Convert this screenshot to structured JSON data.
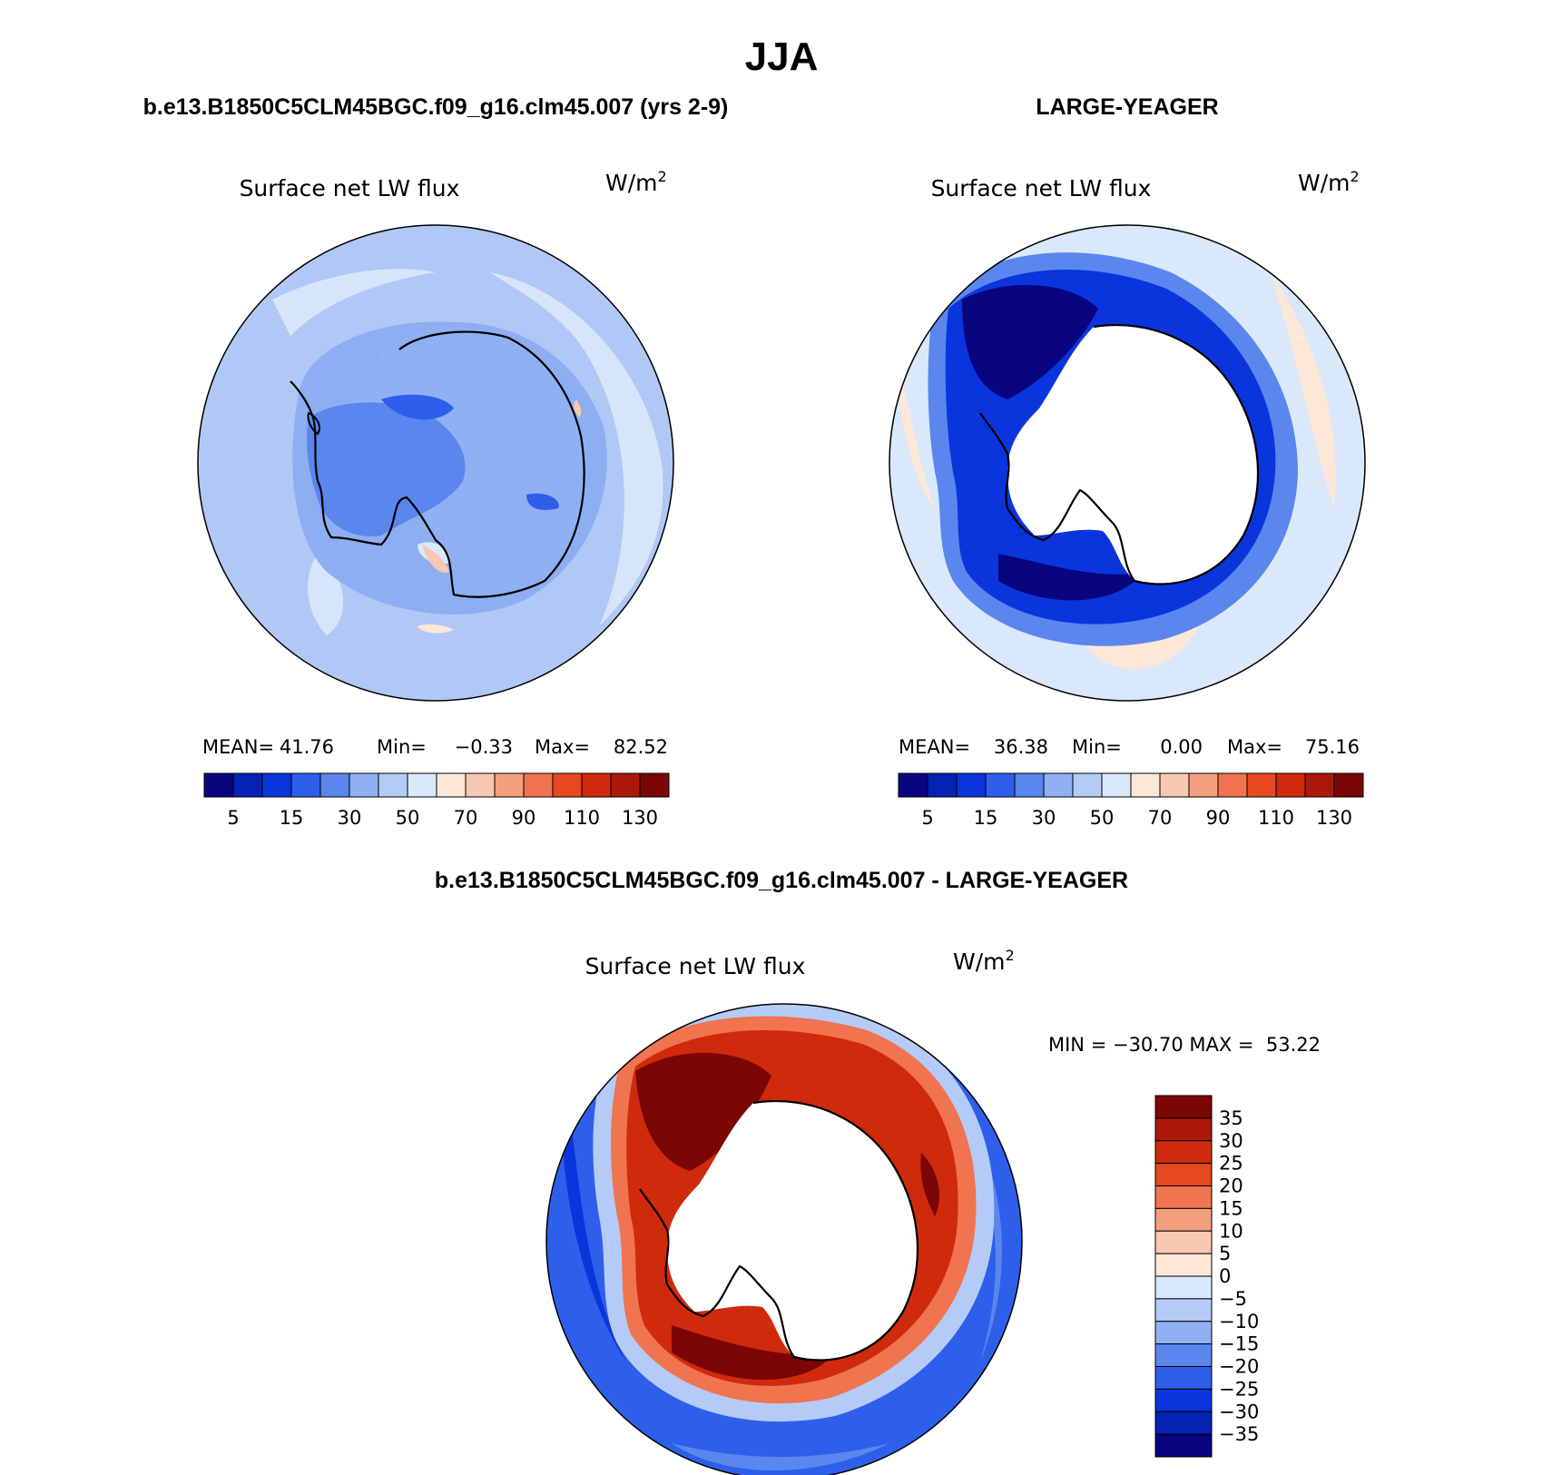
{
  "figure": {
    "title": "JJA",
    "colors": {
      "abs_palette": [
        "#08057f",
        "#0422b4",
        "#0a35dc",
        "#2e5fea",
        "#5a86ee",
        "#8fb0f3",
        "#b4cbf7",
        "#d9e8fb",
        "#fde8d8",
        "#f9c8b2",
        "#f49f7e",
        "#ef744f",
        "#e6491f",
        "#cf2a0c",
        "#ac180a",
        "#7a0706"
      ],
      "diff_palette": [
        "#08057f",
        "#0422b4",
        "#0a35dc",
        "#2e5fea",
        "#5a86ee",
        "#8fb0f3",
        "#b4cbf7",
        "#d9e8fb",
        "#fde8d8",
        "#f9c8b2",
        "#f49f7e",
        "#ef744f",
        "#e6491f",
        "#cf2a0c",
        "#ac180a",
        "#7a0706"
      ]
    }
  },
  "panels": [
    {
      "case_title": "b.e13.B1850C5CLM45BGC.f09_g16.clm45.007 (yrs 2-9)",
      "variable": "Surface net LW flux",
      "units": "W/m",
      "units_sup": "2",
      "stats": {
        "mean_label": "MEAN=",
        "mean": "41.76",
        "min_label": "Min=",
        "min": "−0.33",
        "max_label": "Max=",
        "max": "82.52"
      },
      "colorbar_labels": [
        "5",
        "15",
        "30",
        "50",
        "70",
        "90",
        "110",
        "130"
      ]
    },
    {
      "case_title": "LARGE-YEAGER",
      "variable": "Surface net LW flux",
      "units": "W/m",
      "units_sup": "2",
      "stats": {
        "mean_label": "MEAN=",
        "mean": "36.38",
        "min_label": "Min=",
        "min": "0.00",
        "max_label": "Max=",
        "max": "75.16"
      },
      "colorbar_labels": [
        "5",
        "15",
        "30",
        "50",
        "70",
        "90",
        "110",
        "130"
      ]
    },
    {
      "case_title": "b.e13.B1850C5CLM45BGC.f09_g16.clm45.007 - LARGE-YEAGER",
      "variable": "Surface net LW flux",
      "units": "W/m",
      "units_sup": "2",
      "stats_line": "MIN = −30.70 MAX =  53.22",
      "colorbar_labels": [
        "35",
        "30",
        "25",
        "20",
        "15",
        "10",
        "5",
        "0",
        "−5",
        "−10",
        "−15",
        "−20",
        "−25",
        "−30",
        "−35"
      ]
    }
  ]
}
